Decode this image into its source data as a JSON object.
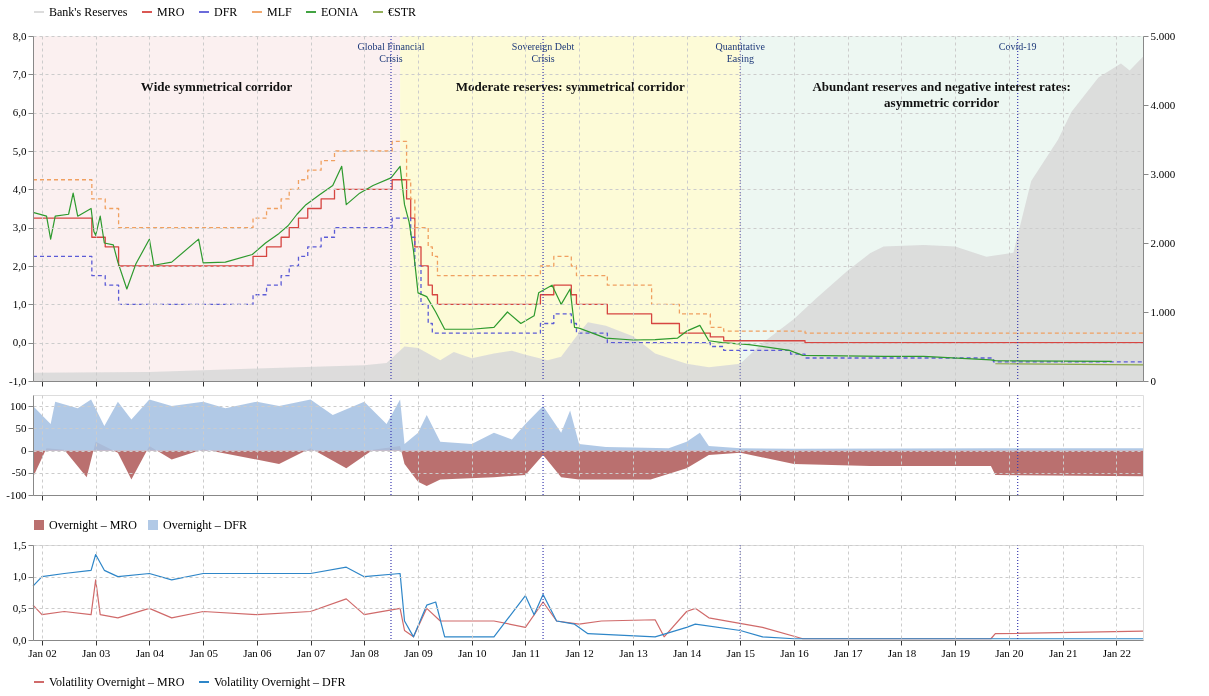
{
  "chart_data": [
    {
      "type": "line",
      "xlim": [
        "2001-11",
        "2022-07"
      ],
      "xticks": [
        {
          "value": "2002-01",
          "label": null
        },
        {
          "value": "2003-01",
          "label": null
        },
        {
          "value": "2004-01",
          "label": null
        },
        {
          "value": "2005-01",
          "label": null
        },
        {
          "value": "2006-01",
          "label": null
        },
        {
          "value": "2007-01",
          "label": null
        },
        {
          "value": "2008-01",
          "label": null
        },
        {
          "value": "2009-01",
          "label": null
        },
        {
          "value": "2010-01",
          "label": null
        },
        {
          "value": "2011-01",
          "label": null
        },
        {
          "value": "2012-01",
          "label": null
        },
        {
          "value": "2013-01",
          "label": null
        },
        {
          "value": "2014-01",
          "label": null
        },
        {
          "value": "2015-01",
          "label": null
        },
        {
          "value": "2016-01",
          "label": null
        },
        {
          "value": "2017-01",
          "label": null
        },
        {
          "value": "2018-01",
          "label": null
        },
        {
          "value": "2019-01",
          "label": null
        },
        {
          "value": "2020-01",
          "label": null
        },
        {
          "value": "2021-01",
          "label": null
        },
        {
          "value": "2022-01",
          "label": null
        }
      ],
      "ylim": [
        -1,
        8
      ],
      "yticks": [
        {
          "value": -1,
          "label": "-1,0"
        },
        {
          "value": 0,
          "label": "0,0"
        },
        {
          "value": 1,
          "label": "1,0"
        },
        {
          "value": 2,
          "label": "2,0"
        },
        {
          "value": 3,
          "label": "3,0"
        },
        {
          "value": 4,
          "label": "4,0"
        },
        {
          "value": 5,
          "label": "5,0"
        },
        {
          "value": 6,
          "label": "6,0"
        },
        {
          "value": 7,
          "label": "7,0"
        },
        {
          "value": 8,
          "label": "8,0"
        }
      ],
      "y2lim": [
        0,
        5000
      ],
      "y2ticks": [
        0,
        {
          "value": 1000,
          "label": "1.000"
        },
        {
          "value": 2000,
          "label": "2.000"
        },
        {
          "value": 3000,
          "label": "3.000"
        },
        {
          "value": 4000,
          "label": "4.000"
        },
        {
          "value": 5000,
          "label": "5.000"
        }
      ],
      "grid": true,
      "legend": "top",
      "tick_labels": "y",
      "bands": [
        {
          "axis": "x",
          "from": "2001-11",
          "to": "2008-09",
          "label": "Wide symmetrical corridor",
          "color": "#fbf0f0"
        },
        {
          "axis": "x",
          "from": "2008-09",
          "to": "2015-01",
          "label": "Moderate reserves: symmetrical corridor",
          "color": "#fdfbd7"
        },
        {
          "axis": "x",
          "from": "2015-01",
          "to": "2022-07",
          "label": "Abundant reserves and negative interest rates: asymmetric corridor",
          "color": "#edf7f2"
        }
      ],
      "ref_lines": [
        {
          "axis": "x",
          "value": "2008-07",
          "label": "Global Financial Crisis",
          "color": "#3b3bb0",
          "line_style": "dotted"
        },
        {
          "axis": "x",
          "value": "2011-05",
          "label": "Sovereign Debt Crisis",
          "color": "#3b3bb0",
          "line_style": "dotted"
        },
        {
          "axis": "x",
          "value": "2015-01",
          "label": "Quantitative Easing",
          "color": "#3b3bb0",
          "line_style": "dotted"
        },
        {
          "axis": "x",
          "value": "2020-03",
          "label": "Covid-19",
          "color": "#3b3bb0",
          "line_style": "dotted"
        }
      ],
      "series": [
        {
          "name": "Bank's Reserves",
          "type": "area",
          "axis": "y2",
          "color": "#d9d9d9",
          "x": [
            "2001-11",
            "2004-01",
            "2006-01",
            "2008-01",
            "2008-06",
            "2008-10",
            "2009-01",
            "2009-06",
            "2009-09",
            "2010-01",
            "2010-06",
            "2010-10",
            "2011-01",
            "2011-06",
            "2011-09",
            "2012-01",
            "2012-03",
            "2012-07",
            "2013-01",
            "2013-06",
            "2014-01",
            "2014-06",
            "2015-01",
            "2015-06",
            "2016-01",
            "2016-06",
            "2017-01",
            "2017-06",
            "2017-09",
            "2018-06",
            "2019-01",
            "2019-08",
            "2020-02",
            "2020-06",
            "2020-12",
            "2021-03",
            "2021-09",
            "2022-02",
            "2022-04",
            "2022-07"
          ],
          "values": [
            120,
            130,
            180,
            230,
            260,
            500,
            480,
            300,
            420,
            330,
            400,
            440,
            380,
            300,
            350,
            700,
            850,
            800,
            650,
            400,
            250,
            200,
            250,
            550,
            900,
            1200,
            1600,
            1850,
            1950,
            1970,
            1950,
            1800,
            1860,
            2900,
            3500,
            3900,
            4400,
            4600,
            4500,
            4700
          ]
        },
        {
          "name": "MRO",
          "type": "step",
          "color": "#d64541",
          "line_style": "solid",
          "x": [
            "2001-11",
            "2002-12-06",
            "2003-03-07",
            "2003-06-06",
            "2005-12-06",
            "2006-03-08",
            "2006-06-15",
            "2006-08-09",
            "2006-10-11",
            "2006-12-13",
            "2007-03-14",
            "2007-06-13",
            "2008-07-09",
            "2008-10-15",
            "2008-11-12",
            "2008-12-10",
            "2009-01-21",
            "2009-03-11",
            "2009-04-08",
            "2009-05-13",
            "2011-04-13",
            "2011-07-13",
            "2011-11-09",
            "2011-12-14",
            "2012-07-11",
            "2013-05-08",
            "2013-11-13",
            "2014-06-11",
            "2014-09-10",
            "2016-03-16",
            "2022-07"
          ],
          "values": [
            3.25,
            2.75,
            2.5,
            2.0,
            2.25,
            2.5,
            2.75,
            3.0,
            3.25,
            3.5,
            3.75,
            4.0,
            4.25,
            3.75,
            3.25,
            2.5,
            2.0,
            1.5,
            1.25,
            1.0,
            1.25,
            1.5,
            1.25,
            1.0,
            0.75,
            0.5,
            0.25,
            0.15,
            0.05,
            0.0,
            0.0
          ]
        },
        {
          "name": "DFR",
          "type": "step",
          "color": "#5b5bd6",
          "line_style": "dashed",
          "x": [
            "2001-11",
            "2002-12-06",
            "2003-03-07",
            "2003-06-06",
            "2005-12-06",
            "2006-03-08",
            "2006-06-15",
            "2006-08-09",
            "2006-10-11",
            "2006-12-13",
            "2007-03-14",
            "2007-06-13",
            "2008-07-09",
            "2008-10-15",
            "2008-11-12",
            "2008-12-10",
            "2009-01-21",
            "2009-03-11",
            "2009-04-08",
            "2009-05-13",
            "2011-04-13",
            "2011-07-13",
            "2011-11-09",
            "2011-12-14",
            "2012-07-11",
            "2013-05-08",
            "2013-11-13",
            "2014-06-11",
            "2014-09-10",
            "2015-12-09",
            "2016-03-16",
            "2019-09-18",
            "2022-07"
          ],
          "values": [
            2.25,
            1.75,
            1.5,
            1.0,
            1.25,
            1.5,
            1.75,
            2.0,
            2.25,
            2.5,
            2.75,
            3.0,
            3.25,
            3.25,
            2.75,
            2.0,
            1.0,
            0.5,
            0.25,
            0.25,
            0.5,
            0.75,
            0.5,
            0.25,
            0.0,
            0.0,
            0.0,
            -0.1,
            -0.2,
            -0.3,
            -0.4,
            -0.5,
            -0.5
          ]
        },
        {
          "name": "MLF",
          "type": "step",
          "color": "#f0a060",
          "line_style": "dashed",
          "x": [
            "2001-11",
            "2002-12-06",
            "2003-03-07",
            "2003-06-06",
            "2005-12-06",
            "2006-03-08",
            "2006-06-15",
            "2006-08-09",
            "2006-10-11",
            "2006-12-13",
            "2007-03-14",
            "2007-06-13",
            "2008-07-09",
            "2008-10-15",
            "2008-11-12",
            "2008-12-10",
            "2009-01-21",
            "2009-03-11",
            "2009-04-08",
            "2009-05-13",
            "2011-04-13",
            "2011-07-13",
            "2011-11-09",
            "2011-12-14",
            "2012-07-11",
            "2013-05-08",
            "2013-11-13",
            "2014-06-11",
            "2014-09-10",
            "2016-03-16",
            "2022-07"
          ],
          "values": [
            4.25,
            3.75,
            3.5,
            3.0,
            3.25,
            3.5,
            3.75,
            4.0,
            4.25,
            4.5,
            4.75,
            5.0,
            5.25,
            4.25,
            3.75,
            3.0,
            3.0,
            2.5,
            2.25,
            1.75,
            2.0,
            2.25,
            2.0,
            1.75,
            1.5,
            1.0,
            0.75,
            0.4,
            0.3,
            0.25,
            0.25
          ]
        },
        {
          "name": "EONIA",
          "color": "#2e9a2e",
          "line_style": "solid",
          "x": [
            "2001-11",
            "2002-02",
            "2002-03",
            "2002-04",
            "2002-07",
            "2002-08",
            "2002-09",
            "2002-12",
            "2002-12-20",
            "2003-01",
            "2003-02",
            "2003-03",
            "2003-05",
            "2003-06",
            "2003-08",
            "2003-10",
            "2004-01",
            "2004-02",
            "2004-06",
            "2004-12",
            "2005-01",
            "2005-06",
            "2005-12",
            "2006-03",
            "2006-06",
            "2006-08",
            "2006-10",
            "2006-12",
            "2007-03",
            "2007-06",
            "2007-08",
            "2007-09",
            "2007-12",
            "2008-03",
            "2008-07",
            "2008-09",
            "2008-10",
            "2008-11",
            "2008-12",
            "2009-01",
            "2009-03",
            "2009-05",
            "2009-07",
            "2010-01",
            "2010-06",
            "2010-09",
            "2010-12",
            "2011-03",
            "2011-04",
            "2011-07",
            "2011-09",
            "2011-11",
            "2011-12",
            "2012-01",
            "2012-07",
            "2013-01",
            "2013-06",
            "2013-11",
            "2014-01",
            "2014-04",
            "2014-06",
            "2014-09",
            "2015-03",
            "2015-12",
            "2016-03",
            "2017-09",
            "2018-06",
            "2019-09",
            "2019-10",
            "2021-12"
          ],
          "values": [
            3.4,
            3.3,
            2.7,
            3.3,
            3.35,
            3.9,
            3.3,
            3.5,
            2.9,
            2.8,
            3.3,
            2.6,
            2.55,
            2.1,
            1.4,
            2.05,
            2.7,
            2.02,
            2.1,
            2.7,
            2.08,
            2.1,
            2.3,
            2.6,
            2.85,
            3.05,
            3.35,
            3.6,
            3.85,
            4.1,
            4.6,
            3.6,
            3.9,
            4.1,
            4.3,
            4.6,
            3.6,
            3.15,
            2.4,
            1.3,
            1.2,
            0.8,
            0.35,
            0.35,
            0.4,
            0.8,
            0.5,
            0.7,
            1.3,
            1.5,
            1.0,
            1.4,
            0.4,
            0.38,
            0.12,
            0.07,
            0.08,
            0.12,
            0.3,
            0.45,
            0.05,
            0.0,
            -0.05,
            -0.2,
            -0.33,
            -0.36,
            -0.36,
            -0.45,
            -0.47,
            -0.49
          ]
        },
        {
          "name": "€STR",
          "color": "#8aa84a",
          "line_style": "solid",
          "x": [
            "2019-10",
            "2022-07"
          ],
          "values": [
            -0.55,
            -0.58
          ]
        }
      ]
    },
    {
      "type": "area",
      "xlim": [
        "2001-11",
        "2022-07"
      ],
      "xticks": [
        {
          "value": "2002-01",
          "label": null
        },
        {
          "value": "2003-01",
          "label": null
        },
        {
          "value": "2004-01",
          "label": null
        },
        {
          "value": "2005-01",
          "label": null
        },
        {
          "value": "2006-01",
          "label": null
        },
        {
          "value": "2007-01",
          "label": null
        },
        {
          "value": "2008-01",
          "label": null
        },
        {
          "value": "2009-01",
          "label": null
        },
        {
          "value": "2010-01",
          "label": null
        },
        {
          "value": "2011-01",
          "label": null
        },
        {
          "value": "2012-01",
          "label": null
        },
        {
          "value": "2013-01",
          "label": null
        },
        {
          "value": "2014-01",
          "label": null
        },
        {
          "value": "2015-01",
          "label": null
        },
        {
          "value": "2016-01",
          "label": null
        },
        {
          "value": "2017-01",
          "label": null
        },
        {
          "value": "2018-01",
          "label": null
        },
        {
          "value": "2019-01",
          "label": null
        },
        {
          "value": "2020-01",
          "label": null
        },
        {
          "value": "2021-01",
          "label": null
        },
        {
          "value": "2022-01",
          "label": null
        }
      ],
      "ylim": [
        -100,
        125
      ],
      "yticks": [
        -100,
        -50,
        0,
        50,
        100
      ],
      "grid": true,
      "legend": "bottom",
      "tick_labels": "y",
      "ref_lines": [
        {
          "axis": "x",
          "value": "2008-07",
          "color": "#3b3bb0",
          "line_style": "dotted"
        },
        {
          "axis": "x",
          "value": "2011-05",
          "color": "#3b3bb0",
          "line_style": "dotted"
        },
        {
          "axis": "x",
          "value": "2015-01",
          "color": "#3b3bb0",
          "line_style": "dotted"
        },
        {
          "axis": "x",
          "value": "2020-03",
          "color": "#3b3bb0",
          "line_style": "dotted"
        }
      ],
      "series": [
        {
          "name": "Overnight – MRO",
          "color": "#b3605f",
          "x": [
            "2001-11",
            "2002-02",
            "2002-06",
            "2002-11",
            "2003-01",
            "2003-06",
            "2003-09",
            "2004-01",
            "2004-06",
            "2005-01",
            "2006-06",
            "2007-01",
            "2007-09",
            "2008-03",
            "2008-09",
            "2008-10",
            "2009-01",
            "2009-03",
            "2009-06",
            "2010-06",
            "2011-01",
            "2011-05",
            "2011-09",
            "2012-01",
            "2013-05",
            "2014-01",
            "2014-06",
            "2015-01",
            "2016-01",
            "2017-06",
            "2019-09",
            "2019-10",
            "2022-07"
          ],
          "values": [
            -60,
            5,
            2,
            -60,
            20,
            -5,
            -65,
            10,
            -20,
            3,
            -30,
            5,
            -40,
            2,
            10,
            -30,
            -70,
            -80,
            -65,
            -60,
            -55,
            -10,
            -60,
            -65,
            -65,
            -40,
            -10,
            -5,
            -30,
            -35,
            -35,
            -55,
            -58
          ]
        },
        {
          "name": "Overnight – DFR",
          "color": "#a9c3e3",
          "x": [
            "2001-11",
            "2002-03",
            "2002-04",
            "2002-09",
            "2002-12",
            "2003-03",
            "2003-06",
            "2003-09",
            "2004-01",
            "2004-06",
            "2005-01",
            "2005-06",
            "2006-01",
            "2006-06",
            "2007-01",
            "2007-06",
            "2008-01",
            "2008-06",
            "2008-09",
            "2008-10",
            "2009-01",
            "2009-03",
            "2009-06",
            "2010-01",
            "2010-06",
            "2010-10",
            "2011-01",
            "2011-05",
            "2011-09",
            "2011-11",
            "2012-01",
            "2012-07",
            "2013-01",
            "2013-09",
            "2014-01",
            "2014-04",
            "2014-06",
            "2015-01",
            "2016-01",
            "2019-10",
            "2022-07"
          ],
          "values": [
            100,
            60,
            110,
            95,
            115,
            55,
            110,
            70,
            115,
            100,
            110,
            95,
            110,
            100,
            115,
            80,
            110,
            60,
            115,
            15,
            40,
            80,
            20,
            15,
            40,
            25,
            60,
            100,
            40,
            90,
            15,
            8,
            7,
            5,
            20,
            40,
            10,
            5,
            4,
            5,
            5
          ]
        }
      ]
    },
    {
      "type": "line",
      "xlim": [
        "2001-11",
        "2022-07"
      ],
      "xticks": [
        {
          "value": "2002-01",
          "label": "Jan 02"
        },
        {
          "value": "2003-01",
          "label": "Jan 03"
        },
        {
          "value": "2004-01",
          "label": "Jan 04"
        },
        {
          "value": "2005-01",
          "label": "Jan 05"
        },
        {
          "value": "2006-01",
          "label": "Jan 06"
        },
        {
          "value": "2007-01",
          "label": "Jan 07"
        },
        {
          "value": "2008-01",
          "label": "Jan 08"
        },
        {
          "value": "2009-01",
          "label": "Jan 09"
        },
        {
          "value": "2010-01",
          "label": "Jan 10"
        },
        {
          "value": "2011-01",
          "label": "Jan 11"
        },
        {
          "value": "2012-01",
          "label": "Jan 12"
        },
        {
          "value": "2013-01",
          "label": "Jan 13"
        },
        {
          "value": "2014-01",
          "label": "Jan 14"
        },
        {
          "value": "2015-01",
          "label": "Jan 15"
        },
        {
          "value": "2016-01",
          "label": "Jan 16"
        },
        {
          "value": "2017-01",
          "label": "Jan 17"
        },
        {
          "value": "2018-01",
          "label": "Jan 18"
        },
        {
          "value": "2019-01",
          "label": "Jan 19"
        },
        {
          "value": "2020-01",
          "label": "Jan 20"
        },
        {
          "value": "2021-01",
          "label": "Jan 21"
        },
        {
          "value": "2022-01",
          "label": "Jan 22"
        }
      ],
      "ylim": [
        0,
        1.5
      ],
      "yticks": [
        {
          "value": 0,
          "label": "0,0"
        },
        {
          "value": 0.5,
          "label": "0,5"
        },
        {
          "value": 1,
          "label": "1,0"
        },
        {
          "value": 1.5,
          "label": "1,5"
        }
      ],
      "grid": true,
      "legend": "bottom",
      "ref_lines": [
        {
          "axis": "x",
          "value": "2008-07",
          "color": "#3b3bb0",
          "line_style": "dotted"
        },
        {
          "axis": "x",
          "value": "2011-05",
          "color": "#3b3bb0",
          "line_style": "dotted"
        },
        {
          "axis": "x",
          "value": "2015-01",
          "color": "#3b3bb0",
          "line_style": "dotted"
        },
        {
          "axis": "x",
          "value": "2020-03",
          "color": "#3b3bb0",
          "line_style": "dotted"
        }
      ],
      "series": [
        {
          "name": "Volatility Overnight – MRO",
          "color": "#d06a6a",
          "line_style": "solid",
          "x": [
            "2001-11",
            "2002-01",
            "2002-06",
            "2002-12",
            "2003-01",
            "2003-02",
            "2003-06",
            "2004-01",
            "2004-06",
            "2005-01",
            "2006-01",
            "2007-01",
            "2007-09",
            "2008-01",
            "2008-09",
            "2008-10",
            "2008-12",
            "2009-03",
            "2009-06",
            "2010-06",
            "2011-01",
            "2011-05",
            "2011-08",
            "2012-01",
            "2012-06",
            "2013-06",
            "2013-08",
            "2014-01",
            "2014-03",
            "2014-06",
            "2015-06",
            "2016-03",
            "2019-09",
            "2019-10",
            "2022-07"
          ],
          "values": [
            0.55,
            0.4,
            0.45,
            0.4,
            0.95,
            0.4,
            0.35,
            0.5,
            0.35,
            0.45,
            0.4,
            0.45,
            0.65,
            0.4,
            0.5,
            0.15,
            0.05,
            0.5,
            0.3,
            0.3,
            0.2,
            0.6,
            0.3,
            0.25,
            0.3,
            0.32,
            0.05,
            0.45,
            0.5,
            0.35,
            0.2,
            0.02,
            0.02,
            0.1,
            0.14
          ]
        },
        {
          "name": "Volatility Overnight – DFR",
          "color": "#2e86c8",
          "line_style": "solid",
          "x": [
            "2001-11",
            "2002-01",
            "2002-06",
            "2002-12",
            "2003-01",
            "2003-03",
            "2003-06",
            "2004-01",
            "2004-06",
            "2005-01",
            "2006-01",
            "2007-01",
            "2007-09",
            "2008-01",
            "2008-09",
            "2008-10",
            "2008-12",
            "2009-03",
            "2009-05",
            "2009-07",
            "2010-06",
            "2011-01",
            "2011-03",
            "2011-05",
            "2011-08",
            "2011-12",
            "2012-03",
            "2013-06",
            "2014-01",
            "2014-03",
            "2015-01",
            "2015-06",
            "2016-01",
            "2022-07"
          ],
          "values": [
            0.85,
            1.0,
            1.05,
            1.1,
            1.35,
            1.1,
            1.0,
            1.05,
            0.95,
            1.05,
            1.05,
            1.05,
            1.15,
            1.0,
            1.05,
            0.3,
            0.05,
            0.55,
            0.6,
            0.05,
            0.05,
            0.7,
            0.4,
            0.72,
            0.3,
            0.25,
            0.1,
            0.05,
            0.2,
            0.25,
            0.15,
            0.05,
            0.02,
            0.02
          ]
        }
      ]
    }
  ]
}
